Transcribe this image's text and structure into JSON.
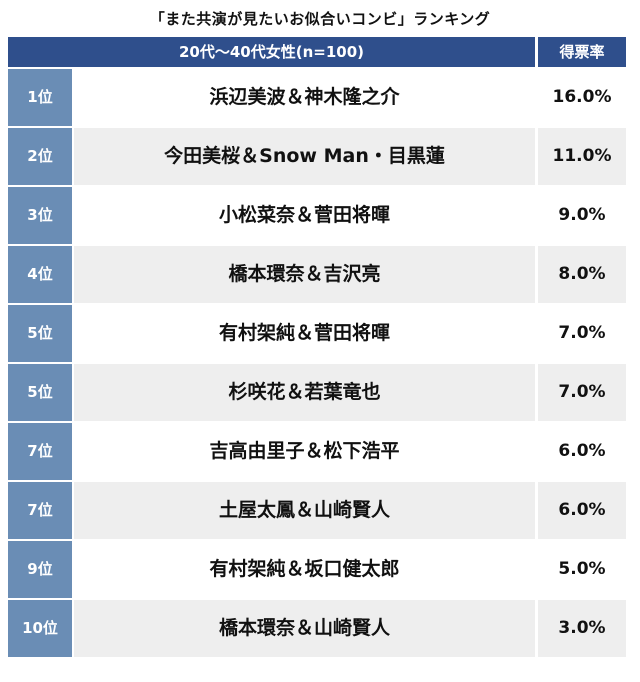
{
  "title": "「また共演が見たいお似合いコンビ」ランキング",
  "header": {
    "group_label": "20代〜40代女性(n=100)",
    "rate_label": "得票率"
  },
  "colors": {
    "header_bg": "#2f4f8c",
    "rank_bg": "#6a8db5",
    "row_alt_bg": "#eeeeee"
  },
  "rows": [
    {
      "rank": "1位",
      "name": "浜辺美波＆神木隆之介",
      "percent": "16.0%"
    },
    {
      "rank": "2位",
      "name": "今田美桜＆Snow Man・目黒蓮",
      "percent": "11.0%"
    },
    {
      "rank": "3位",
      "name": "小松菜奈＆菅田将暉",
      "percent": "9.0%"
    },
    {
      "rank": "4位",
      "name": "橋本環奈＆吉沢亮",
      "percent": "8.0%"
    },
    {
      "rank": "5位",
      "name": "有村架純＆菅田将暉",
      "percent": "7.0%"
    },
    {
      "rank": "5位",
      "name": "杉咲花＆若葉竜也",
      "percent": "7.0%"
    },
    {
      "rank": "7位",
      "name": "吉高由里子＆松下浩平",
      "percent": "6.0%"
    },
    {
      "rank": "7位",
      "name": "土屋太鳳＆山崎賢人",
      "percent": "6.0%"
    },
    {
      "rank": "9位",
      "name": "有村架純＆坂口健太郎",
      "percent": "5.0%"
    },
    {
      "rank": "10位",
      "name": "橋本環奈＆山崎賢人",
      "percent": "3.0%"
    }
  ]
}
